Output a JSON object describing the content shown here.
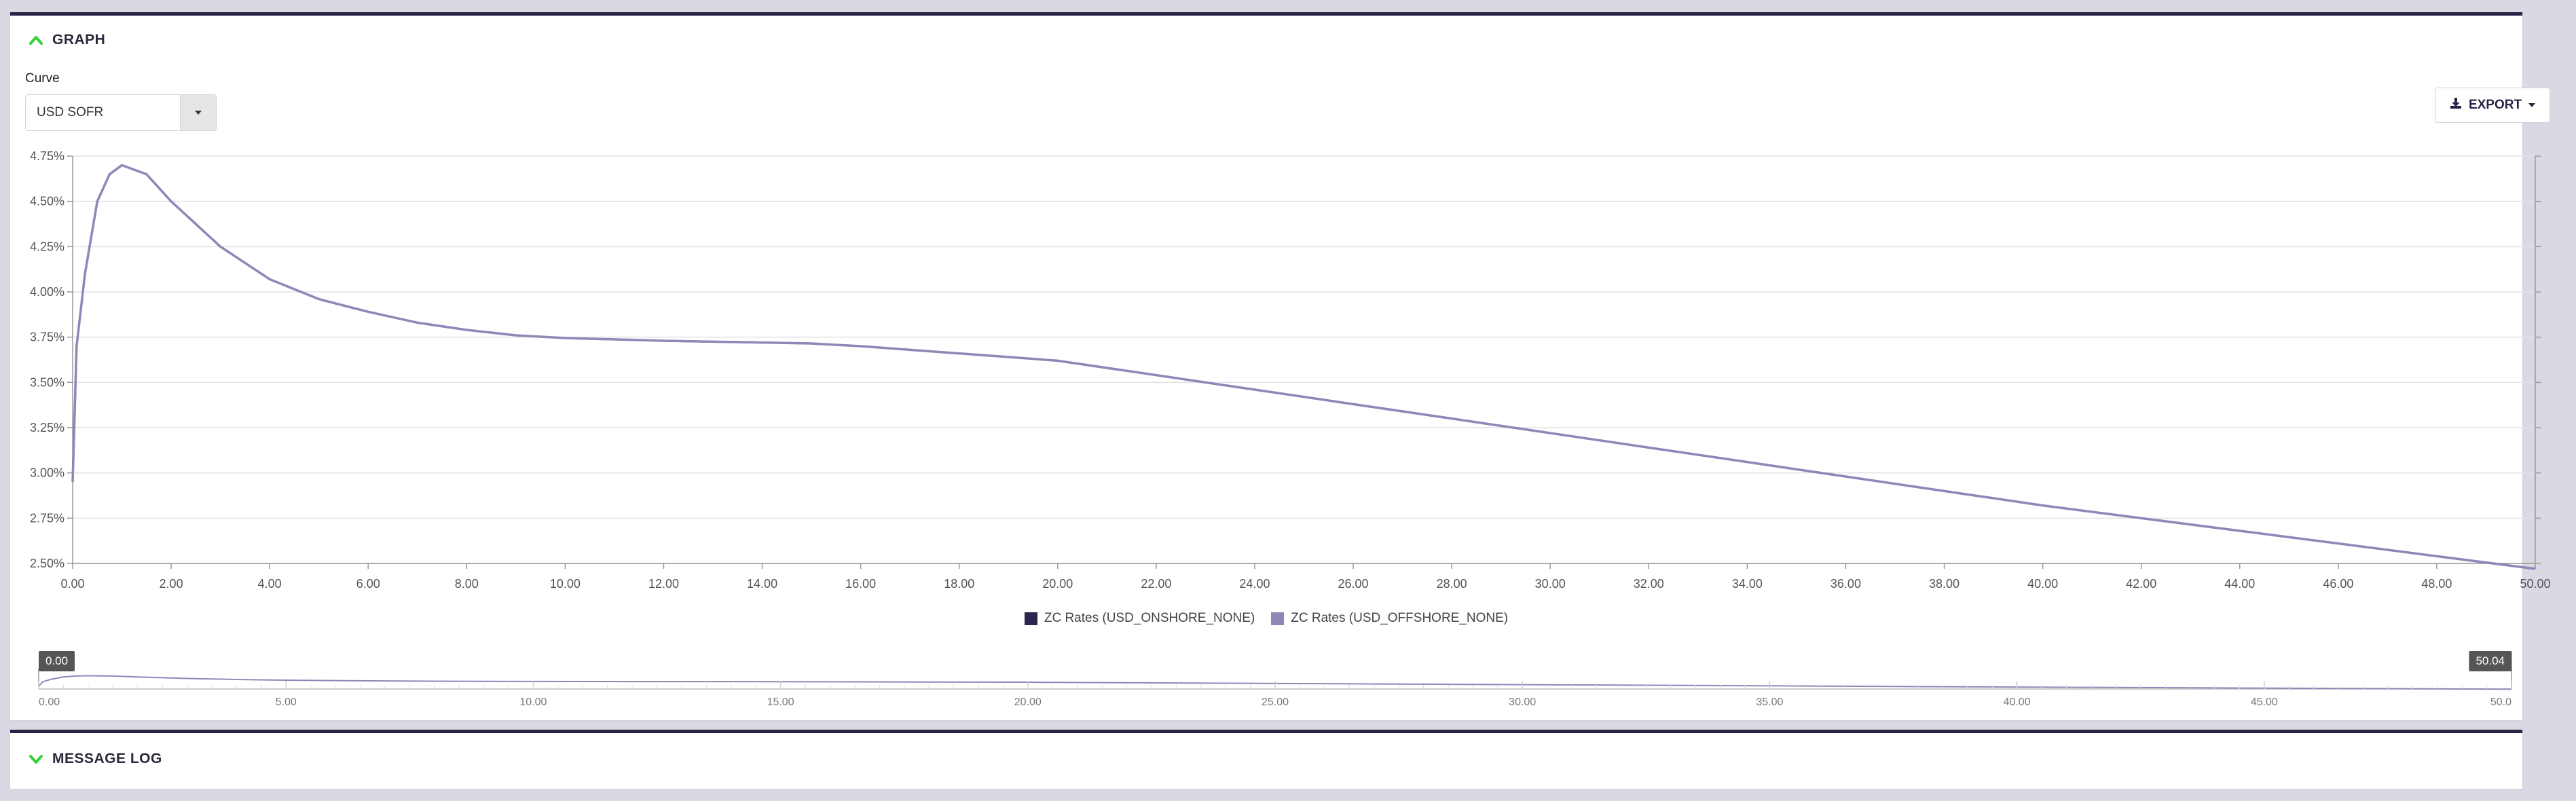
{
  "graph_panel": {
    "title": "GRAPH"
  },
  "curve": {
    "label": "Curve",
    "selected": "USD SOFR"
  },
  "export": {
    "label": "EXPORT"
  },
  "colors": {
    "onshore": "#2a2650",
    "offshore": "#8d88b8",
    "accent_green": "#33d133",
    "panel_border": "#2b2345"
  },
  "chart_data": {
    "type": "line",
    "xlim": [
      0,
      50
    ],
    "ylim": [
      2.5,
      4.75
    ],
    "x_ticks": [
      "0.00",
      "2.00",
      "4.00",
      "6.00",
      "8.00",
      "10.00",
      "12.00",
      "14.00",
      "16.00",
      "18.00",
      "20.00",
      "22.00",
      "24.00",
      "26.00",
      "28.00",
      "30.00",
      "32.00",
      "34.00",
      "36.00",
      "38.00",
      "40.00",
      "42.00",
      "44.00",
      "46.00",
      "48.00",
      "50.00"
    ],
    "y_ticks": [
      "2.50%",
      "2.75%",
      "3.00%",
      "3.25%",
      "3.50%",
      "3.75%",
      "4.00%",
      "4.25%",
      "4.50%",
      "4.75%"
    ],
    "grid": true,
    "legend_position": "bottom",
    "series": [
      {
        "name": "ZC Rates (USD_ONSHORE_NONE)",
        "color": "#2a2650",
        "x": [
          0,
          0.08,
          0.25,
          0.5,
          0.75,
          1,
          1.5,
          2,
          3,
          4,
          5,
          6,
          7,
          8,
          9,
          10,
          12,
          14,
          15,
          16,
          18,
          20,
          22,
          24,
          26,
          28,
          30,
          32,
          34,
          36,
          38,
          40,
          42,
          44,
          46,
          48,
          50
        ],
        "y": [
          2.95,
          3.7,
          4.1,
          4.5,
          4.65,
          4.7,
          4.65,
          4.5,
          4.25,
          4.07,
          3.96,
          3.89,
          3.83,
          3.79,
          3.76,
          3.745,
          3.73,
          3.72,
          3.715,
          3.7,
          3.66,
          3.62,
          3.54,
          3.46,
          3.38,
          3.3,
          3.22,
          3.14,
          3.06,
          2.98,
          2.9,
          2.82,
          2.75,
          2.68,
          2.61,
          2.54,
          2.47
        ]
      },
      {
        "name": "ZC Rates (USD_OFFSHORE_NONE)",
        "color": "#8d88b8",
        "x": [
          0,
          0.08,
          0.25,
          0.5,
          0.75,
          1,
          1.5,
          2,
          3,
          4,
          5,
          6,
          7,
          8,
          9,
          10,
          12,
          14,
          15,
          16,
          18,
          20,
          22,
          24,
          26,
          28,
          30,
          32,
          34,
          36,
          38,
          40,
          42,
          44,
          46,
          48,
          50
        ],
        "y": [
          2.95,
          3.7,
          4.1,
          4.5,
          4.65,
          4.7,
          4.65,
          4.5,
          4.25,
          4.07,
          3.96,
          3.89,
          3.83,
          3.79,
          3.76,
          3.745,
          3.73,
          3.72,
          3.715,
          3.7,
          3.66,
          3.62,
          3.54,
          3.46,
          3.38,
          3.3,
          3.22,
          3.14,
          3.06,
          2.98,
          2.9,
          2.82,
          2.75,
          2.68,
          2.61,
          2.54,
          2.47
        ]
      }
    ],
    "navigator": {
      "ticks": [
        "0.00",
        "5.00",
        "10.00",
        "15.00",
        "20.00",
        "25.00",
        "30.00",
        "35.00",
        "40.00",
        "45.00",
        "50.0"
      ],
      "range_min": "0.00",
      "range_max": "50.04"
    }
  },
  "log_panel": {
    "title": "MESSAGE LOG"
  }
}
